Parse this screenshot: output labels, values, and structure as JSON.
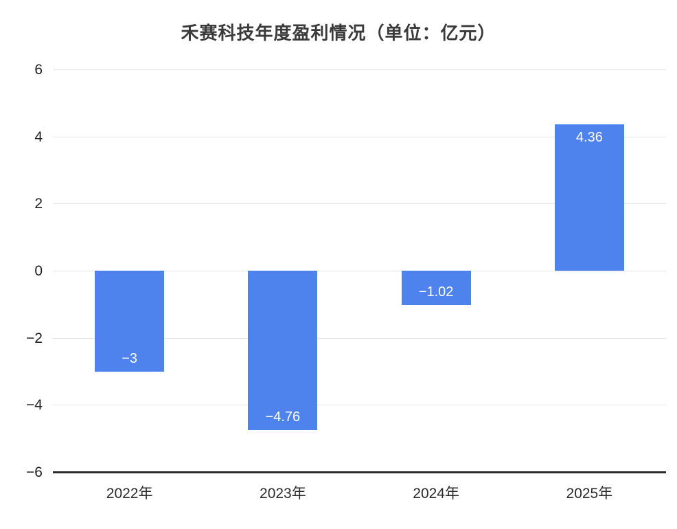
{
  "chart": {
    "title": "禾赛科技年度盈利情况（单位：亿元）"
  },
  "chart_data": {
    "type": "bar",
    "title": "禾赛科技年度盈利情况（单位：亿元）",
    "categories": [
      "2022年",
      "2023年",
      "2024年",
      "2025年"
    ],
    "values": [
      -3,
      -4.76,
      -1.02,
      4.36
    ],
    "value_labels": [
      "−3",
      "−4.76",
      "−1.02",
      "4.36"
    ],
    "xlabel": "",
    "ylabel": "",
    "ylim": [
      -6,
      6
    ],
    "yticks": [
      6,
      4,
      2,
      0,
      -2,
      -4,
      -6
    ],
    "ytick_labels": [
      "6",
      "4",
      "2",
      "0",
      "−2",
      "−4",
      "−6"
    ],
    "grid": true,
    "legend": null,
    "colors": {
      "bar": "#4e82ec",
      "value_label": "#ffffff",
      "grid": "#e2e2e2",
      "axis": "#2b2b2b",
      "tick_text": "#1f1f1f",
      "title_text": "#3a3a3a"
    }
  }
}
